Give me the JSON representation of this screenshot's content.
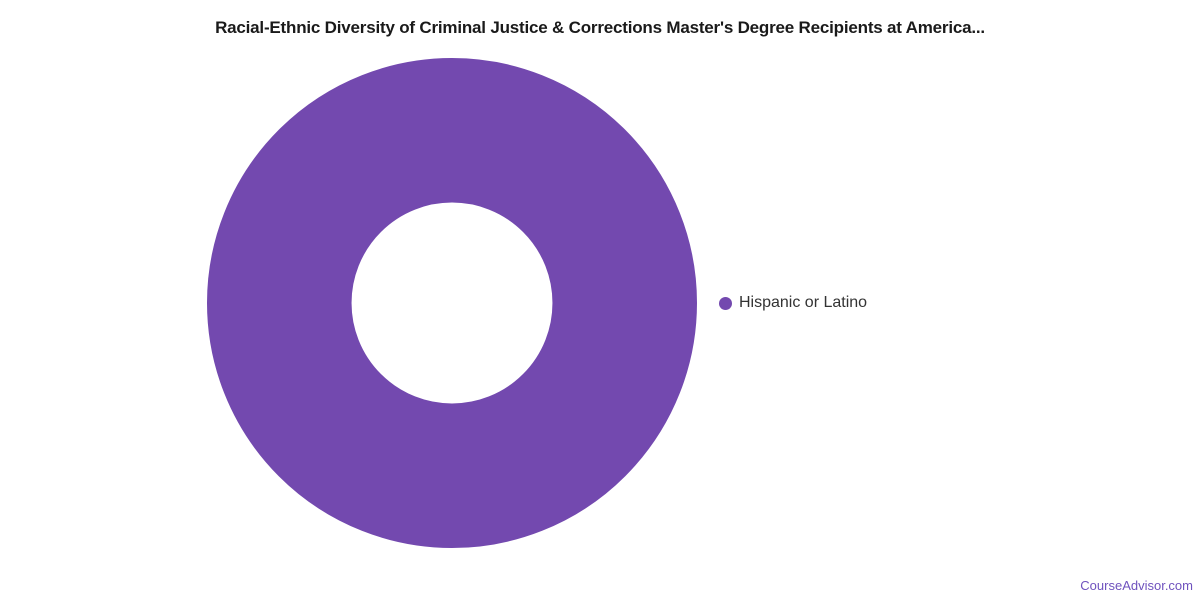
{
  "page": {
    "background": "#FFFFFF",
    "watermark": "CourseAdvisor.com",
    "watermark_color": "#6F52BE"
  },
  "chart_data": {
    "type": "pie",
    "subtype": "donut",
    "title": "Racial-Ethnic Diversity of Criminal Justice & Corrections Master's Degree Recipients at America...",
    "labels": [
      "Hispanic or Latino"
    ],
    "values": [
      100
    ],
    "unit": "percent",
    "colors": [
      "#7349AF"
    ],
    "legend_position": "right",
    "legend_marker": "circle",
    "inner_radius_ratio": 0.41,
    "annotations": []
  }
}
